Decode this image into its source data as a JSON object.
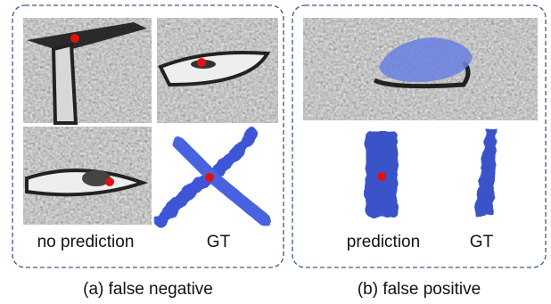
{
  "panels": [
    {
      "labels": [
        "no prediction",
        "GT"
      ],
      "caption": "(a) false negative"
    },
    {
      "labels": [
        "prediction",
        "GT"
      ],
      "caption": "(b) false positive"
    }
  ]
}
